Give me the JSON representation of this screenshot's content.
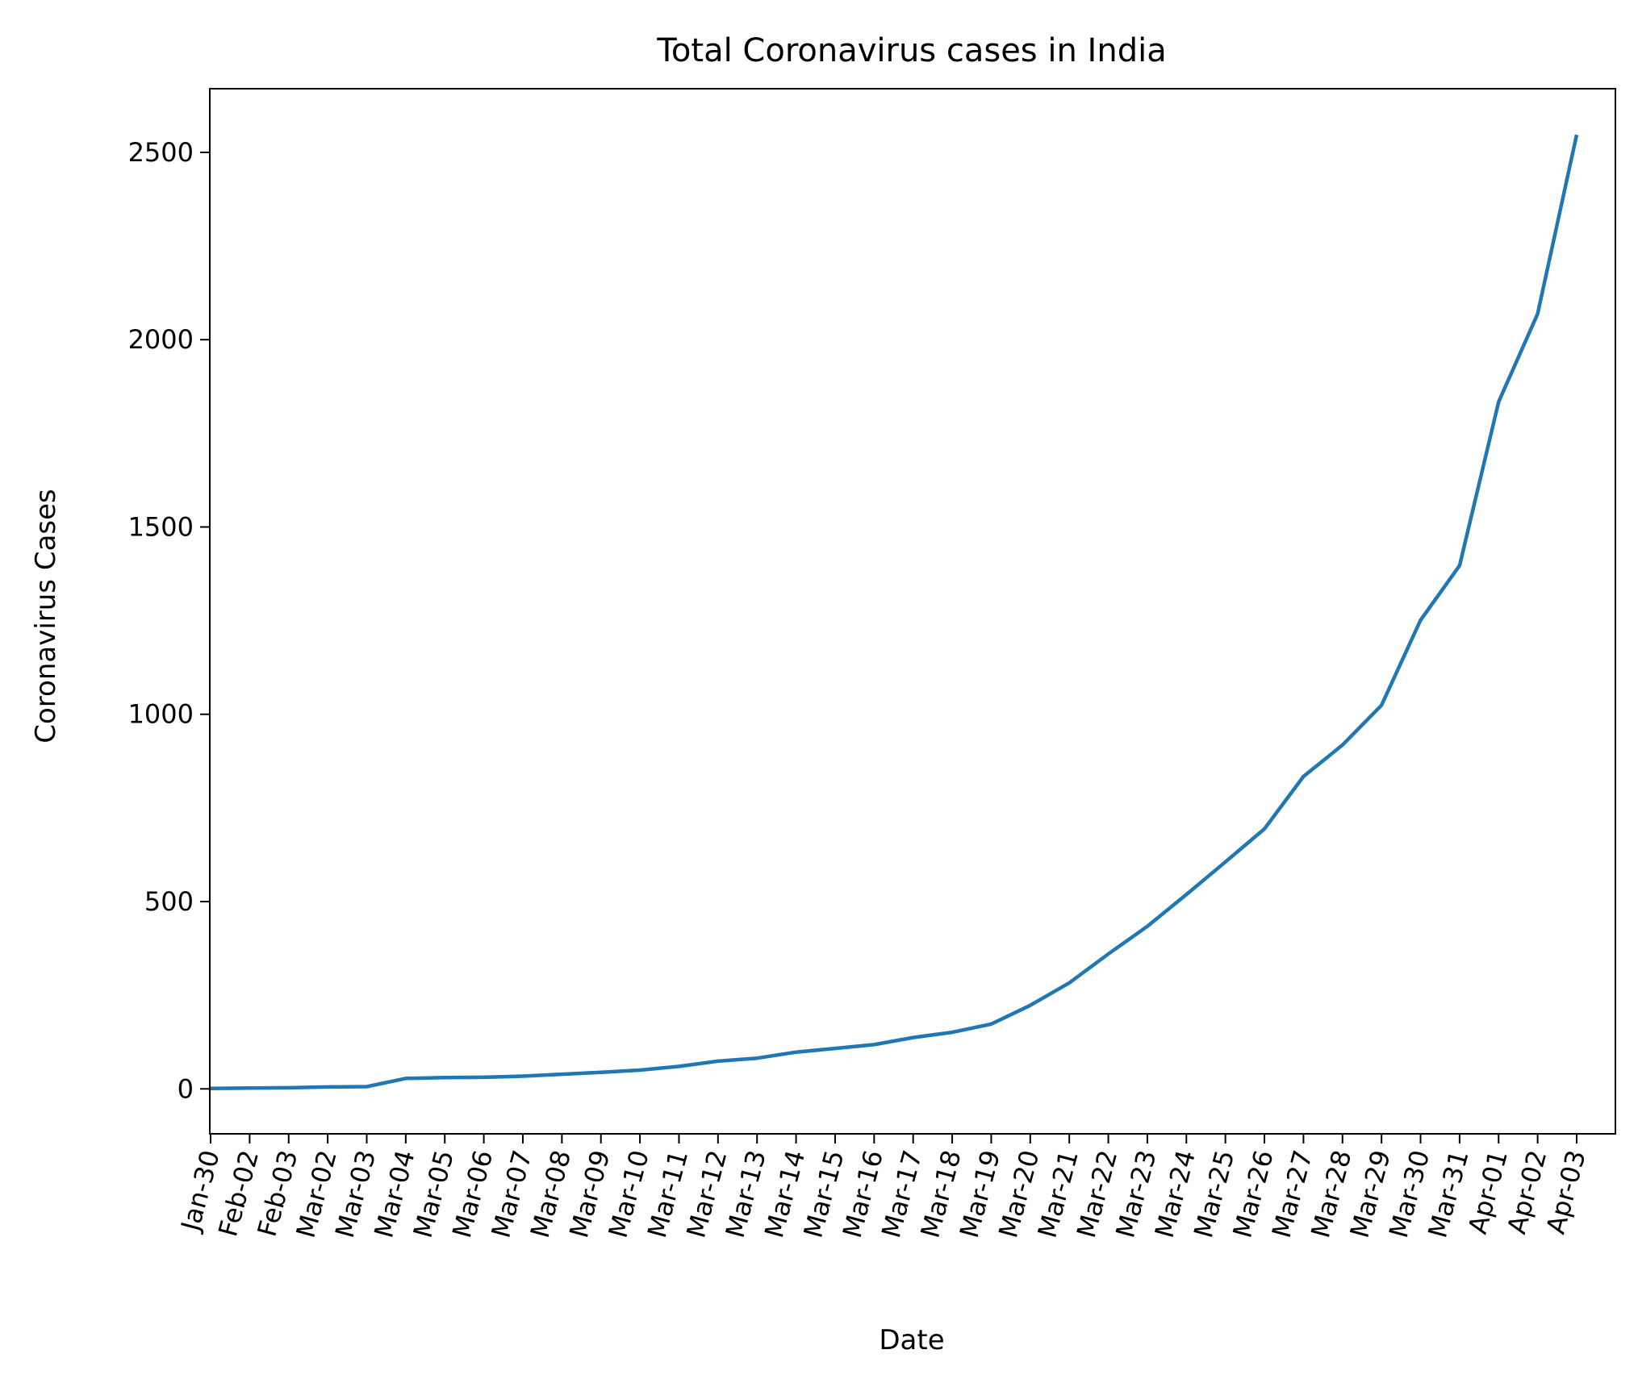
{
  "chart_data": {
    "type": "line",
    "title": "Total Coronavirus cases in India",
    "xlabel": "Date",
    "ylabel": "Coronavirus Cases",
    "x": [
      "Jan-30",
      "Feb-02",
      "Feb-03",
      "Mar-02",
      "Mar-03",
      "Mar-04",
      "Mar-05",
      "Mar-06",
      "Mar-07",
      "Mar-08",
      "Mar-09",
      "Mar-10",
      "Mar-11",
      "Mar-12",
      "Mar-13",
      "Mar-14",
      "Mar-15",
      "Mar-16",
      "Mar-17",
      "Mar-18",
      "Mar-19",
      "Mar-20",
      "Mar-21",
      "Mar-22",
      "Mar-23",
      "Mar-24",
      "Mar-25",
      "Mar-26",
      "Mar-27",
      "Mar-28",
      "Mar-29",
      "Mar-30",
      "Mar-31",
      "Apr-01",
      "Apr-02",
      "Apr-03"
    ],
    "series": [
      {
        "values": [
          1,
          2,
          3,
          5,
          6,
          28,
          30,
          31,
          34,
          39,
          44,
          50,
          60,
          74,
          82,
          98,
          108,
          118,
          137,
          151,
          173,
          223,
          283,
          360,
          434,
          519,
          606,
          694,
          834,
          918,
          1024,
          1251,
          1397,
          1834,
          2069,
          2547
        ],
        "color": "#1f77b4"
      }
    ],
    "yticks": [
      0,
      500,
      1000,
      1500,
      2000,
      2500
    ],
    "ylim": [
      -120,
      2670
    ],
    "grid": false,
    "legend": false
  }
}
